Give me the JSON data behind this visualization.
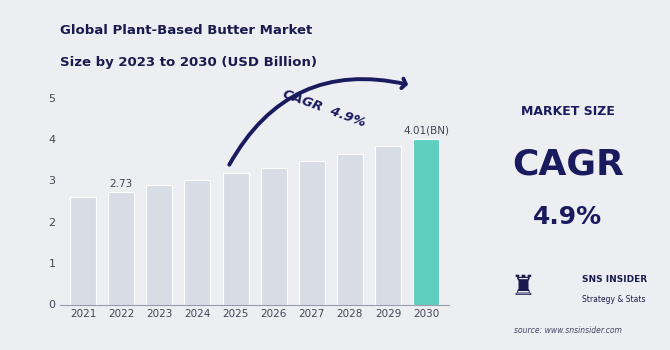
{
  "title_line1": "Global Plant-Based Butter Market",
  "title_line2": "Size by 2023 to 2030 (USD Billion)",
  "years": [
    2021,
    2022,
    2023,
    2024,
    2025,
    2026,
    2027,
    2028,
    2029,
    2030
  ],
  "values": [
    2.6,
    2.73,
    2.9,
    3.02,
    3.18,
    3.3,
    3.48,
    3.65,
    3.82,
    4.01
  ],
  "bar_colors": [
    "#d8dde5",
    "#d8dde5",
    "#d8dde5",
    "#d8dde5",
    "#d8dde5",
    "#d8dde5",
    "#d8dde5",
    "#d8dde5",
    "#d8dde5",
    "#5ecec0"
  ],
  "highlight_label": "4.01(BN)",
  "label_2022": "2.73",
  "cagr_text": "CAGR  4.9%",
  "ylim": [
    0,
    5.5
  ],
  "yticks": [
    0,
    1,
    2,
    3,
    4,
    5
  ],
  "chart_bg": "#eceef2",
  "right_panel_bg": "#bfc5cc",
  "title_color": "#1a1a4e",
  "axis_color": "#444455",
  "cagr_arrow_color": "#1a1a5e",
  "right_title1": "MARKET SIZE",
  "right_title2": "CAGR",
  "right_value": "4.9%",
  "source_text": "source: www.snsinsider.com"
}
